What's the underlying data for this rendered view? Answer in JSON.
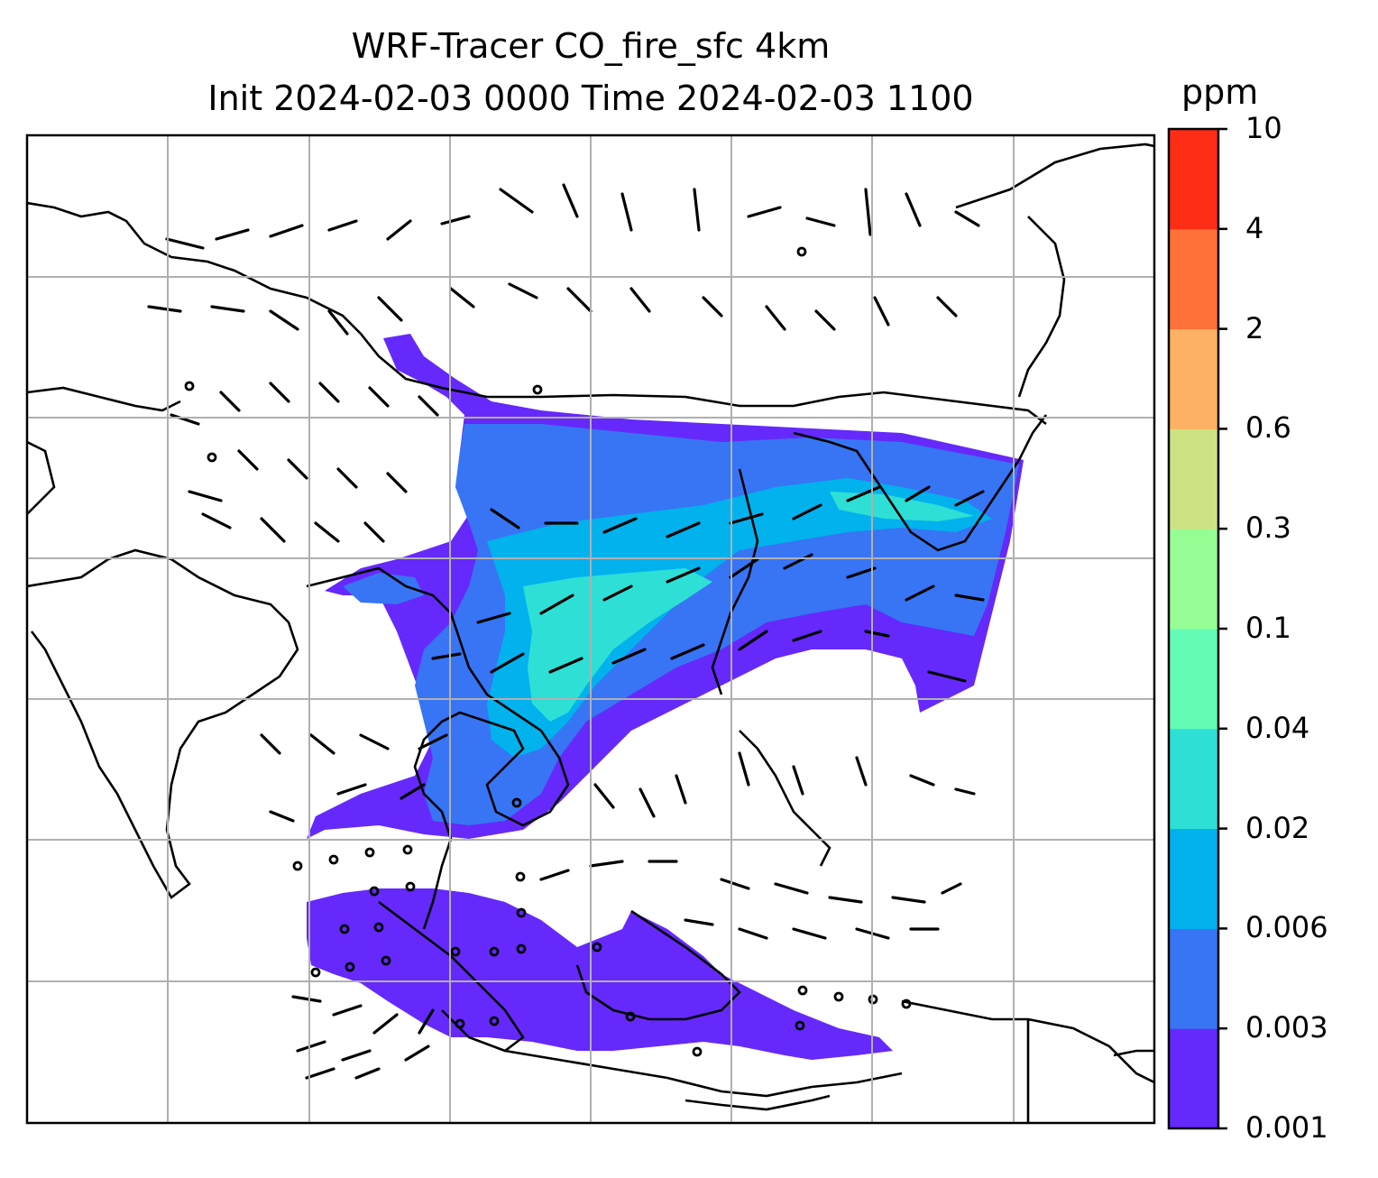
{
  "title": {
    "line1": "WRF-Tracer CO_fire_sfc 4km",
    "line2": "Init 2024-02-03 0000 Time 2024-02-03 1100"
  },
  "colorbar": {
    "unit": "ppm",
    "levels": [
      "0.001",
      "0.003",
      "0.006",
      "0.02",
      "0.04",
      "0.1",
      "0.3",
      "0.6",
      "2",
      "4",
      "10"
    ],
    "colors": [
      "#6529fb",
      "#3775f4",
      "#01b2ed",
      "#2edfd6",
      "#64fbb7",
      "#96fd95",
      "#cde283",
      "#fcb164",
      "#fe7138",
      "#fd2c15"
    ]
  },
  "map": {
    "field": "CO_fire_sfc",
    "resolution": "4km",
    "gridlines": true,
    "plume_colors": {
      "low": "#6529fb",
      "mid": "#3775f4",
      "high": "#01b2ed",
      "peak": "#2edfd6"
    },
    "coast_color": "#000000",
    "grid_color": "#b0b0b0"
  }
}
